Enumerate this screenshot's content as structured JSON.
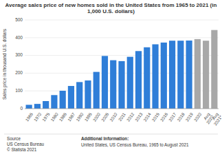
{
  "chart_data": {
    "type": "bar",
    "title": "Average sales price of new homes sold in the United States from 1965 to 2021 (in\n1,000 U.S. dollars)",
    "y_label": "Sales price in thousand U.S. dollars",
    "categories": [
      "1965",
      "1970",
      "1975",
      "1980",
      "1985",
      "1987",
      "1990",
      "1995",
      "2000",
      "2005",
      "2010",
      "2011",
      "2012",
      "2013",
      "2014",
      "2015",
      "2016",
      "2017",
      "2018",
      "2019",
      "2020",
      "Aug\n2020",
      "Aug\n2021*"
    ],
    "values": [
      21.5,
      26.6,
      42.6,
      76.4,
      100.8,
      127.8,
      149.8,
      158.7,
      207.0,
      297.0,
      272.9,
      267.9,
      292.2,
      324.5,
      345.8,
      362.6,
      372.5,
      383.0,
      383.0,
      383.9,
      391.9,
      383.0,
      443.2
    ],
    "colors": [
      "#2f7ed8",
      "#2f7ed8",
      "#2f7ed8",
      "#2f7ed8",
      "#2f7ed8",
      "#2f7ed8",
      "#2f7ed8",
      "#2f7ed8",
      "#2f7ed8",
      "#2f7ed8",
      "#2f7ed8",
      "#2f7ed8",
      "#2f7ed8",
      "#2f7ed8",
      "#2f7ed8",
      "#2f7ed8",
      "#2f7ed8",
      "#2f7ed8",
      "#2f7ed8",
      "#2f7ed8",
      "#a8a8a8",
      "#a8a8a8",
      "#a8a8a8"
    ],
    "ylim": [
      0,
      500
    ],
    "yticks": [
      0,
      100,
      200,
      300,
      400,
      500
    ],
    "grid": true,
    "source": "Source\nUS Census Bureau\n© Statista 2021",
    "annotations": [
      "Additional Information:",
      "United States, US Census Bureau, 1965 to August 2021"
    ]
  }
}
